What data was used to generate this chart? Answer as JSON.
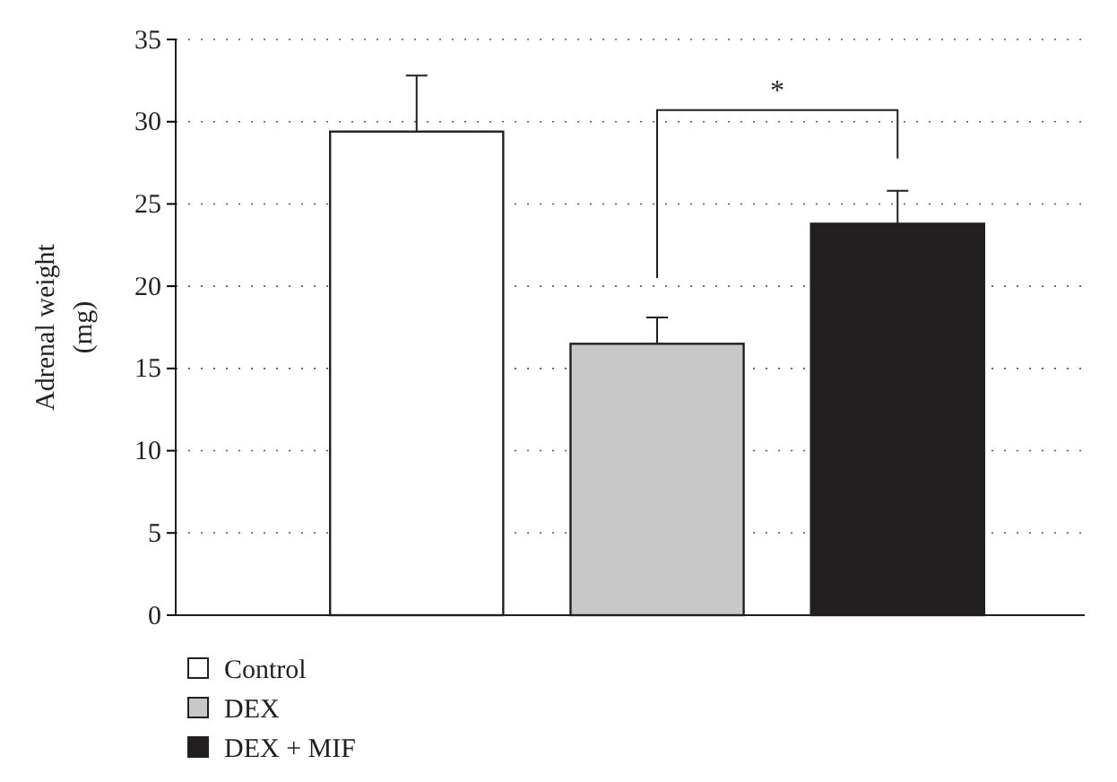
{
  "chart_data": {
    "type": "bar",
    "ylabel": "Adrenal weight (mg)",
    "categories": [
      null
    ],
    "series": [
      {
        "name": "Control",
        "color": "#ffffff",
        "values": [
          29.4
        ],
        "errors": [
          3.4
        ]
      },
      {
        "name": "DEX",
        "color": "#c8c8c8",
        "values": [
          16.5
        ],
        "errors": [
          1.6
        ]
      },
      {
        "name": "DEX + MIF",
        "color": "#231f20",
        "values": [
          23.8
        ],
        "errors": [
          2.0
        ]
      }
    ],
    "ylim": [
      0,
      35
    ],
    "yticks": [
      0,
      5,
      10,
      15,
      20,
      25,
      30,
      35
    ],
    "grid": "y",
    "legend": "bottom left",
    "annotations": [
      "*"
    ]
  }
}
